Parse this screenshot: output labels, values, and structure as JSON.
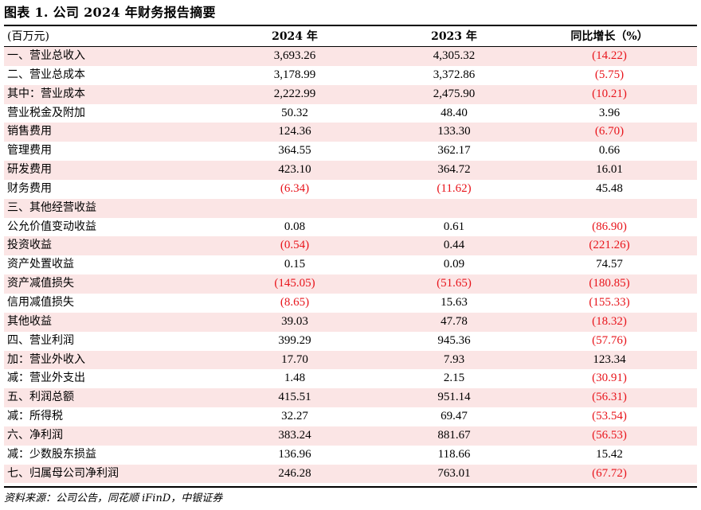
{
  "title": "图表 1. 公司 2024 年财务报告摘要",
  "header": {
    "unit": "(百万元)",
    "col1": "2024 年",
    "col2": "2023 年",
    "col3": "同比增长（%）"
  },
  "rows": [
    {
      "label": "一、营业总收入",
      "v2024": "3,693.26",
      "v2023": "4,305.32",
      "yoy": "(14.22)"
    },
    {
      "label": "二、营业总成本",
      "v2024": "3,178.99",
      "v2023": "3,372.86",
      "yoy": "(5.75)"
    },
    {
      "label": "其中：营业成本",
      "v2024": "2,222.99",
      "v2023": "2,475.90",
      "yoy": "(10.21)"
    },
    {
      "label": "营业税金及附加",
      "v2024": "50.32",
      "v2023": "48.40",
      "yoy": "3.96"
    },
    {
      "label": "销售费用",
      "v2024": "124.36",
      "v2023": "133.30",
      "yoy": "(6.70)"
    },
    {
      "label": "管理费用",
      "v2024": "364.55",
      "v2023": "362.17",
      "yoy": "0.66"
    },
    {
      "label": "研发费用",
      "v2024": "423.10",
      "v2023": "364.72",
      "yoy": "16.01"
    },
    {
      "label": "财务费用",
      "v2024": "(6.34)",
      "v2023": "(11.62)",
      "yoy": "45.48"
    },
    {
      "label": "三、其他经营收益",
      "v2024": "",
      "v2023": "",
      "yoy": ""
    },
    {
      "label": "公允价值变动收益",
      "v2024": "0.08",
      "v2023": "0.61",
      "yoy": "(86.90)"
    },
    {
      "label": "投资收益",
      "v2024": "(0.54)",
      "v2023": "0.44",
      "yoy": "(221.26)"
    },
    {
      "label": "资产处置收益",
      "v2024": "0.15",
      "v2023": "0.09",
      "yoy": "74.57"
    },
    {
      "label": "资产减值损失",
      "v2024": "(145.05)",
      "v2023": "(51.65)",
      "yoy": "(180.85)"
    },
    {
      "label": "信用减值损失",
      "v2024": "(8.65)",
      "v2023": "15.63",
      "yoy": "(155.33)"
    },
    {
      "label": "其他收益",
      "v2024": "39.03",
      "v2023": "47.78",
      "yoy": "(18.32)"
    },
    {
      "label": "四、营业利润",
      "v2024": "399.29",
      "v2023": "945.36",
      "yoy": "(57.76)"
    },
    {
      "label": "加：营业外收入",
      "v2024": "17.70",
      "v2023": "7.93",
      "yoy": "123.34"
    },
    {
      "label": "减：营业外支出",
      "v2024": "1.48",
      "v2023": "2.15",
      "yoy": "(30.91)"
    },
    {
      "label": "五、利润总额",
      "v2024": "415.51",
      "v2023": "951.14",
      "yoy": "(56.31)"
    },
    {
      "label": "减：所得税",
      "v2024": "32.27",
      "v2023": "69.47",
      "yoy": "(53.54)"
    },
    {
      "label": "六、净利润",
      "v2024": "383.24",
      "v2023": "881.67",
      "yoy": "(56.53)"
    },
    {
      "label": "减：少数股东损益",
      "v2024": "136.96",
      "v2023": "118.66",
      "yoy": "15.42"
    },
    {
      "label": "七、归属母公司净利润",
      "v2024": "246.28",
      "v2023": "763.01",
      "yoy": "(67.72)"
    }
  ],
  "source": "资料来源：公司公告，同花顺 iFinD，中银证券",
  "colors": {
    "negative": "#e8141b",
    "shade": "#fbe5e5"
  }
}
